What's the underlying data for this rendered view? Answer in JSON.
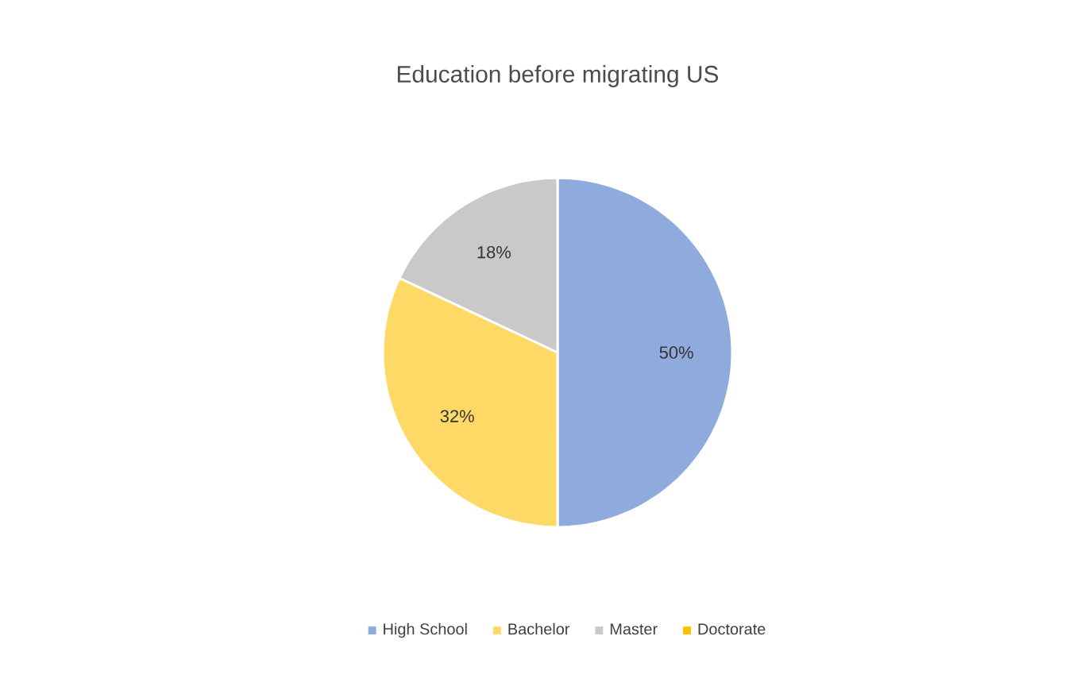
{
  "chart_data": {
    "type": "pie",
    "title": "Education before migrating US",
    "categories": [
      "High School",
      "Bachelor",
      "Master",
      "Doctorate"
    ],
    "values": [
      50,
      32,
      18,
      0
    ],
    "value_labels": [
      "50%",
      "32%",
      "18%",
      null
    ],
    "colors": [
      "#8faadc",
      "#ffd966",
      "#c9c9c9",
      "#ffc000"
    ],
    "legend": "bottom"
  }
}
